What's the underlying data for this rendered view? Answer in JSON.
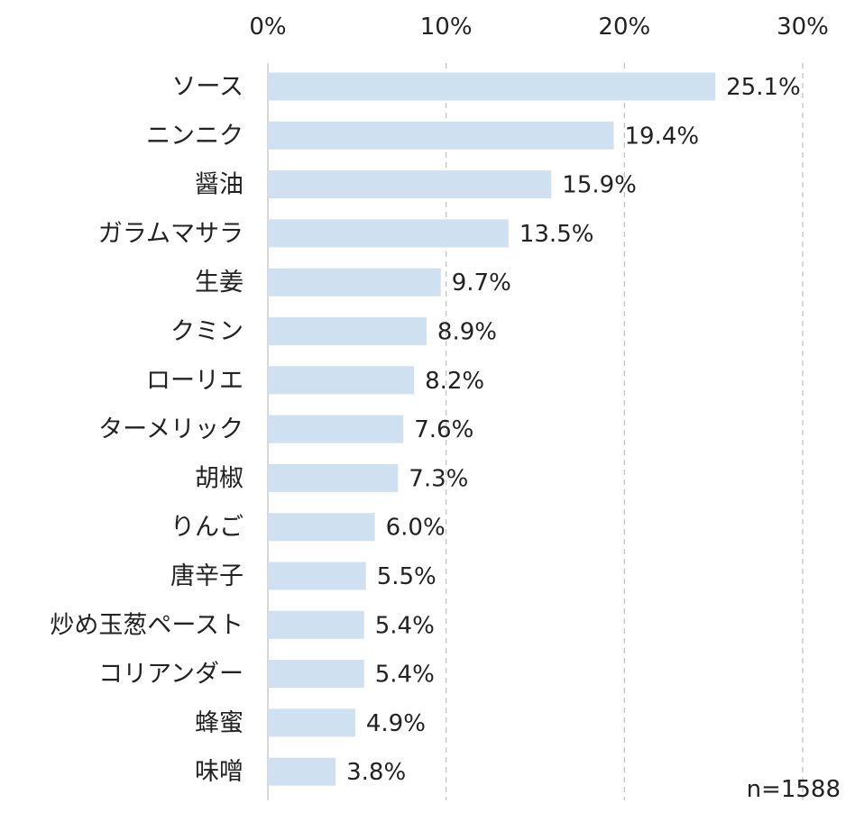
{
  "chart_data": {
    "type": "bar",
    "orientation": "horizontal",
    "categories": [
      "ソース",
      "ニンニク",
      "醤油",
      "ガラムマサラ",
      "生姜",
      "クミン",
      "ローリエ",
      "ターメリック",
      "胡椒",
      "りんご",
      "唐辛子",
      "炒め玉葱ペースト",
      "コリアンダー",
      "蜂蜜",
      "味噌"
    ],
    "values": [
      25.1,
      19.4,
      15.9,
      13.5,
      9.7,
      8.9,
      8.2,
      7.6,
      7.3,
      6.0,
      5.5,
      5.4,
      5.4,
      4.9,
      3.8
    ],
    "value_labels": [
      "25.1%",
      "19.4%",
      "15.9%",
      "13.5%",
      "9.7%",
      "8.9%",
      "8.2%",
      "7.6%",
      "7.3%",
      "6.0%",
      "5.5%",
      "5.4%",
      "5.4%",
      "4.9%",
      "3.8%"
    ],
    "xlim": [
      0,
      30
    ],
    "x_ticks": [
      0,
      10,
      20,
      30
    ],
    "x_tick_labels": [
      "0%",
      "10%",
      "20%",
      "30%"
    ],
    "x_axis_position": "top",
    "grid": true,
    "title": "",
    "xlabel": "",
    "ylabel": "",
    "annotation": "n=1588",
    "colors": {
      "bar": "#cfe0f1",
      "grid": "#bfbfbf",
      "text": "#222222"
    }
  }
}
